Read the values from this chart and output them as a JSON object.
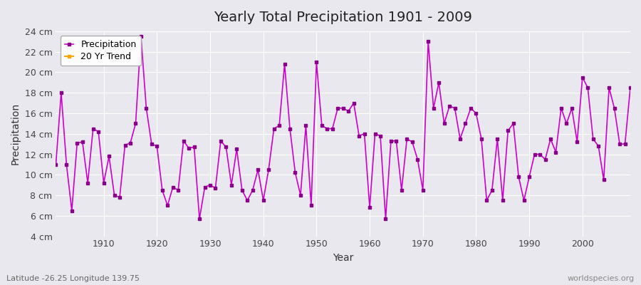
{
  "title": "Yearly Total Precipitation 1901 - 2009",
  "xlabel": "Year",
  "ylabel": "Precipitation",
  "lat_lon_label": "Latitude -26.25 Longitude 139.75",
  "watermark": "worldspecies.org",
  "line_color": "#cc00cc",
  "marker_color": "#880088",
  "legend_entries": [
    "Precipitation",
    "20 Yr Trend"
  ],
  "legend_colors": [
    "#cc00cc",
    "#ffa500"
  ],
  "ylim": [
    4,
    24
  ],
  "yticks": [
    4,
    6,
    8,
    10,
    12,
    14,
    16,
    18,
    20,
    22,
    24
  ],
  "background_color": "#e8e8ee",
  "plot_bg_color": "#e8e8ee",
  "years": [
    1901,
    1902,
    1903,
    1904,
    1905,
    1906,
    1907,
    1908,
    1909,
    1910,
    1911,
    1912,
    1913,
    1914,
    1915,
    1916,
    1917,
    1918,
    1919,
    1920,
    1921,
    1922,
    1923,
    1924,
    1925,
    1926,
    1927,
    1928,
    1929,
    1930,
    1931,
    1932,
    1933,
    1934,
    1935,
    1936,
    1937,
    1938,
    1939,
    1940,
    1941,
    1942,
    1943,
    1944,
    1945,
    1946,
    1947,
    1948,
    1949,
    1950,
    1951,
    1952,
    1953,
    1954,
    1955,
    1956,
    1957,
    1958,
    1959,
    1960,
    1961,
    1962,
    1963,
    1964,
    1965,
    1966,
    1967,
    1968,
    1969,
    1970,
    1971,
    1972,
    1973,
    1974,
    1975,
    1976,
    1977,
    1978,
    1979,
    1980,
    1981,
    1982,
    1983,
    1984,
    1985,
    1986,
    1987,
    1988,
    1989,
    1990,
    1991,
    1992,
    1993,
    1994,
    1995,
    1996,
    1997,
    1998,
    1999,
    2000,
    2001,
    2002,
    2003,
    2004,
    2005,
    2006,
    2007,
    2008,
    2009
  ],
  "precip": [
    11.0,
    18.0,
    11.0,
    6.5,
    13.1,
    13.2,
    9.2,
    14.5,
    14.2,
    9.2,
    11.8,
    8.0,
    7.8,
    12.9,
    13.1,
    15.0,
    23.5,
    16.5,
    13.0,
    12.8,
    8.5,
    7.0,
    8.8,
    8.5,
    13.3,
    12.6,
    12.7,
    5.7,
    8.8,
    9.0,
    8.7,
    13.3,
    12.7,
    9.0,
    12.5,
    8.5,
    7.5,
    8.5,
    10.5,
    7.5,
    10.5,
    14.5,
    14.8,
    20.8,
    14.5,
    10.2,
    8.0,
    14.8,
    7.0,
    21.0,
    14.8,
    14.5,
    14.5,
    16.5,
    16.5,
    16.2,
    17.0,
    13.8,
    14.0,
    6.8,
    14.0,
    13.8,
    5.7,
    13.3,
    13.3,
    8.5,
    13.5,
    13.2,
    11.5,
    8.5,
    23.0,
    16.5,
    19.0,
    15.0,
    16.7,
    16.5,
    13.5,
    15.0,
    16.5,
    16.0,
    13.5,
    7.5,
    8.5,
    13.5,
    7.5,
    14.3,
    15.0,
    9.8,
    7.5,
    9.8,
    12.0,
    12.0,
    11.5,
    13.5,
    12.2,
    16.5,
    15.0,
    16.5,
    13.2,
    19.5,
    18.5,
    13.5,
    12.8,
    9.5,
    18.5,
    16.5,
    13.0,
    13.0,
    18.5
  ]
}
